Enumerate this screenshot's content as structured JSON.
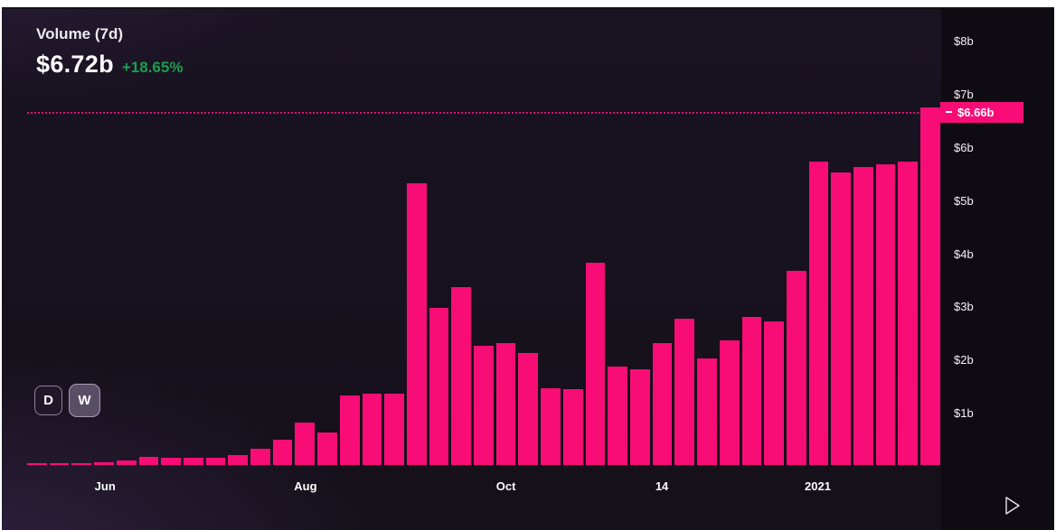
{
  "header": {
    "title": "Volume (7d)",
    "value": "$6.72b",
    "change": "+18.65%"
  },
  "marker": {
    "label": "$6.66b",
    "value": 6.66
  },
  "controls": {
    "daily_label": "D",
    "weekly_label": "W",
    "active": "W"
  },
  "colors": {
    "bar": "#f80d77",
    "positive_change": "#1a9e4f",
    "marker_bg": "#f80d77",
    "background": "#17111d",
    "axis_text": "#f3f1f6"
  },
  "chart_data": {
    "type": "bar",
    "title": "Volume (7d)",
    "unit": "billions USD",
    "ylim": [
      0,
      8
    ],
    "grid": false,
    "legend": false,
    "marker_line_value": 6.66,
    "y_ticks": [
      {
        "label": "$8b",
        "value": 8
      },
      {
        "label": "$7b",
        "value": 7
      },
      {
        "label": "$6b",
        "value": 6
      },
      {
        "label": "$5b",
        "value": 5
      },
      {
        "label": "$4b",
        "value": 4
      },
      {
        "label": "$3b",
        "value": 3
      },
      {
        "label": "$2b",
        "value": 2
      },
      {
        "label": "$1b",
        "value": 1
      }
    ],
    "x_tick_labels": [
      {
        "label": "Jun",
        "bar_index": 3
      },
      {
        "label": "Aug",
        "bar_index": 12
      },
      {
        "label": "Oct",
        "bar_index": 21
      },
      {
        "label": "14",
        "bar_index": 28
      },
      {
        "label": "2021",
        "bar_index": 35
      }
    ],
    "values": [
      0.03,
      0.03,
      0.04,
      0.05,
      0.08,
      0.15,
      0.13,
      0.13,
      0.13,
      0.18,
      0.3,
      0.48,
      0.8,
      0.62,
      1.3,
      1.35,
      1.35,
      5.3,
      2.95,
      3.35,
      2.25,
      2.3,
      2.1,
      1.45,
      1.42,
      3.8,
      1.85,
      1.8,
      2.3,
      2.75,
      2.0,
      2.35,
      2.78,
      2.7,
      3.65,
      5.7,
      5.5,
      5.6,
      5.65,
      5.7,
      6.72
    ]
  }
}
